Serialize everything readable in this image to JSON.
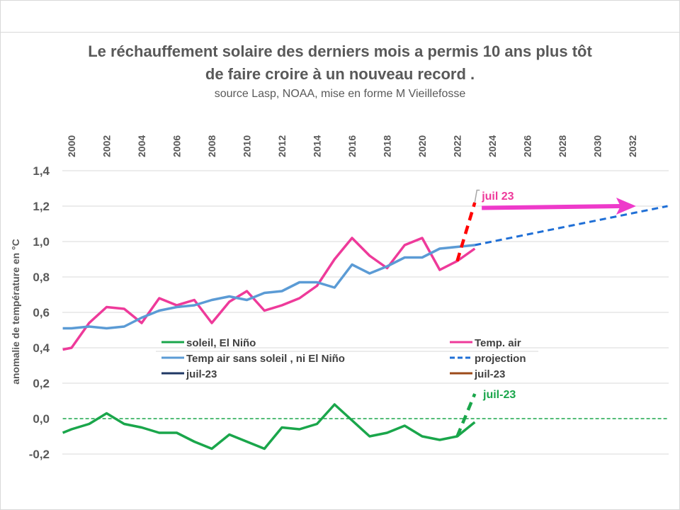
{
  "chart_data": {
    "type": "line",
    "title": "Le réchauffement solaire des derniers mois a permis 10 ans plus tôt de faire croire à un nouveau record .",
    "title_lines": [
      "Le réchauffement solaire des derniers mois a permis 10 ans plus tôt",
      "de faire croire à un nouveau record ."
    ],
    "subtitle": "source Lasp, NOAA, mise en forme M Vieillefosse",
    "xlabel": "",
    "ylabel": "anomalie de température en °C",
    "xlim": [
      1999.5,
      2034
    ],
    "ylim": [
      -0.2,
      1.4
    ],
    "x_ticks": [
      "2000",
      "2002",
      "2004",
      "2006",
      "2008",
      "2010",
      "2012",
      "2014",
      "2016",
      "2018",
      "2020",
      "2022",
      "2024",
      "2026",
      "2028",
      "2030",
      "2032"
    ],
    "y_ticks": [
      "1,4",
      "1,2",
      "1,0",
      "0,8",
      "0,6",
      "0,4",
      "0,2",
      "0,0",
      "-0,2"
    ],
    "y_tick_values": [
      1.4,
      1.2,
      1.0,
      0.8,
      0.6,
      0.4,
      0.2,
      0.0,
      -0.2
    ],
    "grid": true,
    "legend_position": "middle",
    "series": [
      {
        "name": "Temp. air",
        "color": "#ee3a9a",
        "style": "solid",
        "x": [
          1999.5,
          2000,
          2001,
          2002,
          2003,
          2004,
          2005,
          2006,
          2007,
          2008,
          2009,
          2010,
          2011,
          2012,
          2013,
          2014,
          2015,
          2016,
          2017,
          2018,
          2019,
          2020,
          2021,
          2022,
          2023
        ],
        "values": [
          0.39,
          0.4,
          0.54,
          0.63,
          0.62,
          0.54,
          0.68,
          0.64,
          0.67,
          0.54,
          0.66,
          0.72,
          0.61,
          0.64,
          0.68,
          0.75,
          0.9,
          1.02,
          0.92,
          0.85,
          0.98,
          1.02,
          0.84,
          0.89,
          0.96
        ]
      },
      {
        "name": "Temp air sans soleil , ni El Niño",
        "color": "#5b9bd5",
        "style": "solid",
        "x": [
          1999.5,
          2000,
          2001,
          2002,
          2003,
          2004,
          2005,
          2006,
          2007,
          2008,
          2009,
          2010,
          2011,
          2012,
          2013,
          2014,
          2015,
          2016,
          2017,
          2018,
          2019,
          2020,
          2021,
          2022,
          2023
        ],
        "values": [
          0.51,
          0.51,
          0.52,
          0.51,
          0.52,
          0.57,
          0.61,
          0.63,
          0.64,
          0.67,
          0.69,
          0.67,
          0.71,
          0.72,
          0.77,
          0.77,
          0.74,
          0.87,
          0.82,
          0.86,
          0.91,
          0.91,
          0.96,
          0.97,
          0.98
        ]
      },
      {
        "name": "soleil, El Niño",
        "color": "#1aa64b",
        "style": "solid",
        "x": [
          1999.5,
          2000,
          2001,
          2002,
          2003,
          2004,
          2005,
          2006,
          2007,
          2008,
          2009,
          2010,
          2011,
          2012,
          2013,
          2014,
          2015,
          2016,
          2017,
          2018,
          2019,
          2020,
          2021,
          2022,
          2023
        ],
        "values": [
          -0.08,
          -0.06,
          -0.03,
          0.03,
          -0.03,
          -0.05,
          -0.08,
          -0.08,
          -0.13,
          -0.17,
          -0.09,
          -0.13,
          -0.17,
          -0.05,
          -0.06,
          -0.03,
          0.08,
          -0.01,
          -0.1,
          -0.08,
          -0.04,
          -0.1,
          -0.12,
          -0.1,
          -0.02
        ]
      },
      {
        "name": "projection",
        "color": "#1f6fd6",
        "style": "dashed",
        "x": [
          2023,
          2034
        ],
        "values": [
          0.98,
          1.2
        ]
      },
      {
        "name": "juil-23",
        "color": "#ff0000",
        "style": "dashed",
        "x": [
          2022,
          2023
        ],
        "values": [
          0.89,
          1.22
        ]
      },
      {
        "name": "juil-23",
        "color": "#1aa64b",
        "style": "dashed",
        "x": [
          2022,
          2023
        ],
        "values": [
          -0.1,
          0.14
        ]
      },
      {
        "name": "zero",
        "color": "#1aa64b",
        "style": "dotted",
        "x": [
          1999.5,
          2034
        ],
        "values": [
          0,
          0
        ]
      }
    ],
    "legend": [
      {
        "label": "soleil, El Niño",
        "color": "#1aa64b",
        "style": "solid"
      },
      {
        "label": "Temp. air",
        "color": "#ee3a9a",
        "style": "solid"
      },
      {
        "label": "Temp air sans soleil , ni El Niño",
        "color": "#5b9bd5",
        "style": "solid"
      },
      {
        "label": "projection",
        "color": "#1f6fd6",
        "style": "dashed"
      },
      {
        "label": "juil-23",
        "color": "#1f3864",
        "style": "solid"
      },
      {
        "label": "juil-23",
        "color": "#9c4a1a",
        "style": "solid"
      }
    ],
    "annotations": [
      {
        "text": "juil 23",
        "color": "#ee3a9a",
        "x": 2023.2,
        "y": 1.24
      },
      {
        "text": "juil-23",
        "color": "#1aa64b",
        "x": 2024,
        "y": 0.12
      },
      {
        "text": "arrow",
        "color": "#ee3aca",
        "from": [
          2023.4,
          1.19
        ],
        "to": [
          2032.2,
          1.2
        ]
      }
    ]
  }
}
